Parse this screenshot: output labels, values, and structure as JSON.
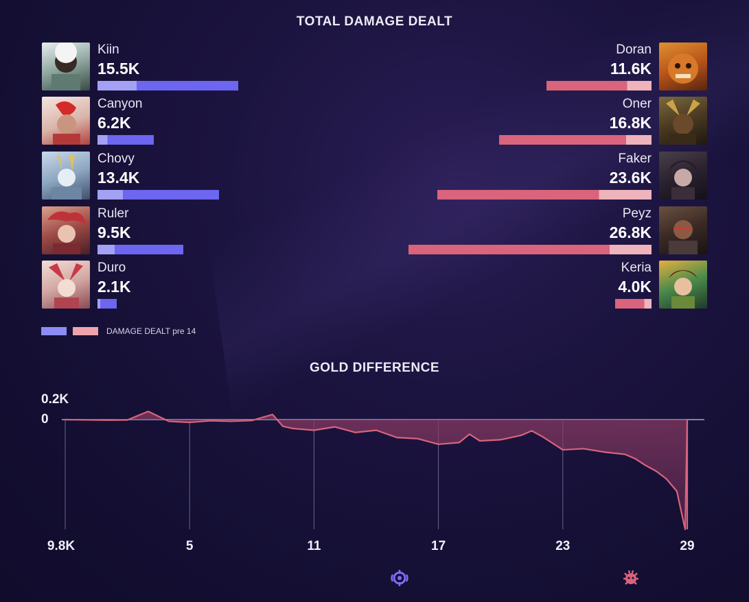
{
  "chart_data": [
    {
      "type": "bar",
      "title": "TOTAL DAMAGE DEALT",
      "legend": {
        "label": "DAMAGE DEALT pre 14",
        "colors": [
          "#8c8cf5",
          "#eda4ac"
        ]
      },
      "colors": {
        "blue_total": "#6c66f0",
        "blue_pre14": "#a3a1f3",
        "red_total": "#d9647c",
        "red_pre14": "#efb3bb"
      },
      "scale_max": 26.8,
      "blue_team": [
        {
          "name": "Kiin",
          "label": "15.5K",
          "total": 15.5,
          "pre14": 4.3
        },
        {
          "name": "Canyon",
          "label": "6.2K",
          "total": 6.2,
          "pre14": 1.1
        },
        {
          "name": "Chovy",
          "label": "13.4K",
          "total": 13.4,
          "pre14": 2.8
        },
        {
          "name": "Ruler",
          "label": "9.5K",
          "total": 9.5,
          "pre14": 1.9
        },
        {
          "name": "Duro",
          "label": "2.1K",
          "total": 2.1,
          "pre14": 0.3
        }
      ],
      "red_team": [
        {
          "name": "Doran",
          "label": "11.6K",
          "total": 11.6,
          "pre14": 2.7
        },
        {
          "name": "Oner",
          "label": "16.8K",
          "total": 16.8,
          "pre14": 2.8
        },
        {
          "name": "Faker",
          "label": "23.6K",
          "total": 23.6,
          "pre14": 5.8
        },
        {
          "name": "Peyz",
          "label": "26.8K",
          "total": 26.8,
          "pre14": 4.6
        },
        {
          "name": "Keria",
          "label": "4.0K",
          "total": 4.0,
          "pre14": 0.8
        }
      ]
    },
    {
      "type": "area",
      "title": "GOLD DIFFERENCE",
      "y_tick_labels": [
        "0.2K",
        "0"
      ],
      "min_label": "9.8K",
      "x_ticks": [
        5,
        11,
        17,
        23,
        29
      ],
      "xlim": [
        -1,
        29
      ],
      "ylim": [
        -9800,
        200
      ],
      "line_color": "#d9647c",
      "fill_color": "#8a3a63",
      "x": [
        -1,
        1,
        2,
        3,
        4,
        5,
        6,
        7,
        8,
        9,
        9.5,
        10,
        11,
        12,
        13,
        14,
        15,
        16,
        17,
        18,
        18.5,
        19,
        20,
        21,
        21.5,
        22,
        23,
        24,
        25,
        26,
        26.5,
        27,
        27.5,
        28,
        28.5,
        28.9,
        29
      ],
      "y": [
        0,
        -50,
        -30,
        80,
        -150,
        -250,
        -100,
        -150,
        -80,
        50,
        -600,
        -800,
        -950,
        -650,
        -1150,
        -950,
        -1600,
        -1700,
        -2200,
        -2050,
        -1300,
        -1900,
        -1800,
        -1400,
        -1000,
        -1500,
        -2700,
        -2600,
        -2900,
        -3100,
        -3500,
        -4100,
        -4600,
        -5300,
        -6400,
        -9800,
        0
      ]
    }
  ]
}
